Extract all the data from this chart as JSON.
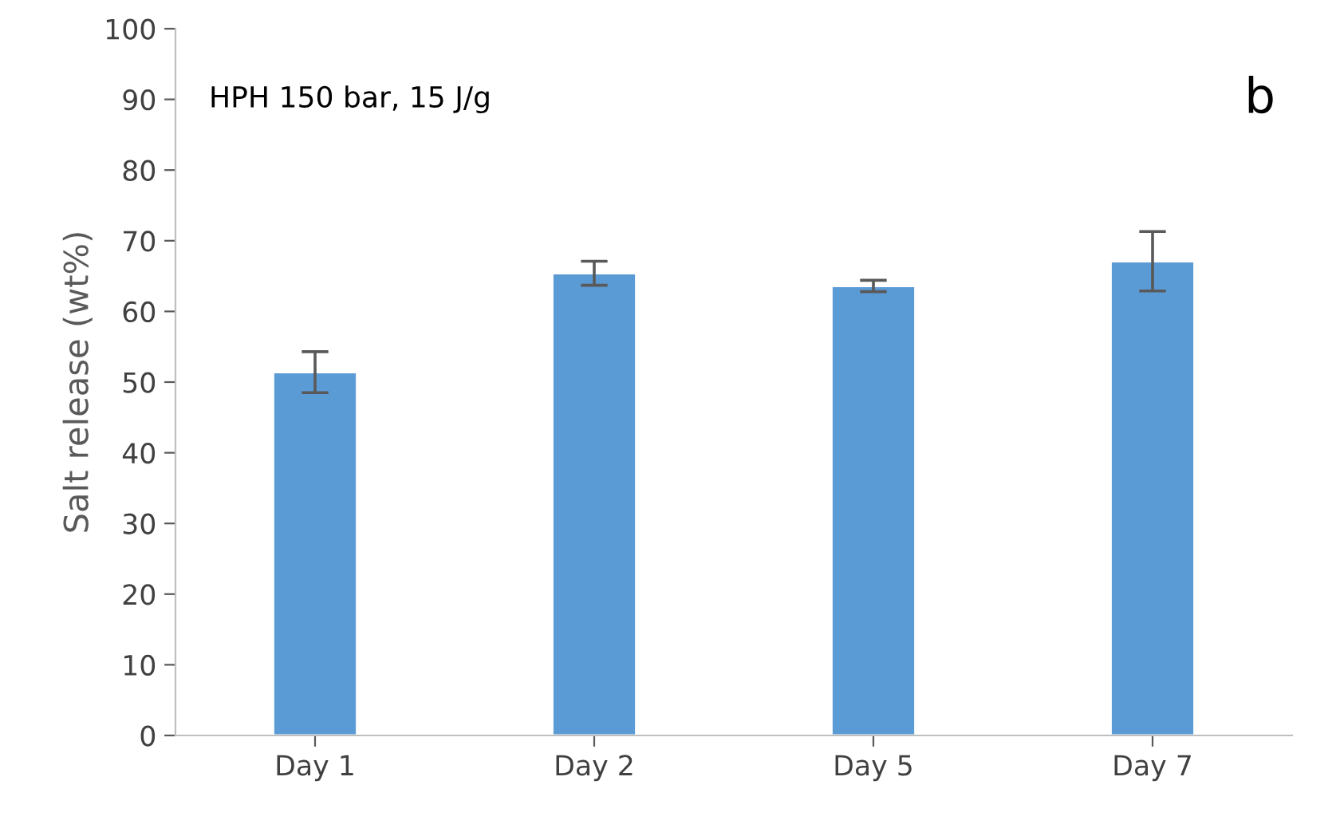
{
  "chart_data": {
    "type": "bar",
    "ylabel": "Salt release (wt%)",
    "categories": [
      "Day 1",
      "Day 2",
      "Day 5",
      "Day 7"
    ],
    "series": [
      {
        "color": "#5b9bd5",
        "values": [
          51.4,
          65.4,
          63.6,
          67.1
        ],
        "errors": [
          2.9,
          1.7,
          0.8,
          4.2
        ]
      }
    ],
    "ylim": [
      0,
      100
    ],
    "yticks": [
      0,
      10,
      20,
      30,
      40,
      50,
      60,
      70,
      80,
      90,
      100
    ],
    "grid": false,
    "legend": false,
    "annotations": [
      "HPH 150 bar, 15 J/g",
      "b"
    ]
  }
}
